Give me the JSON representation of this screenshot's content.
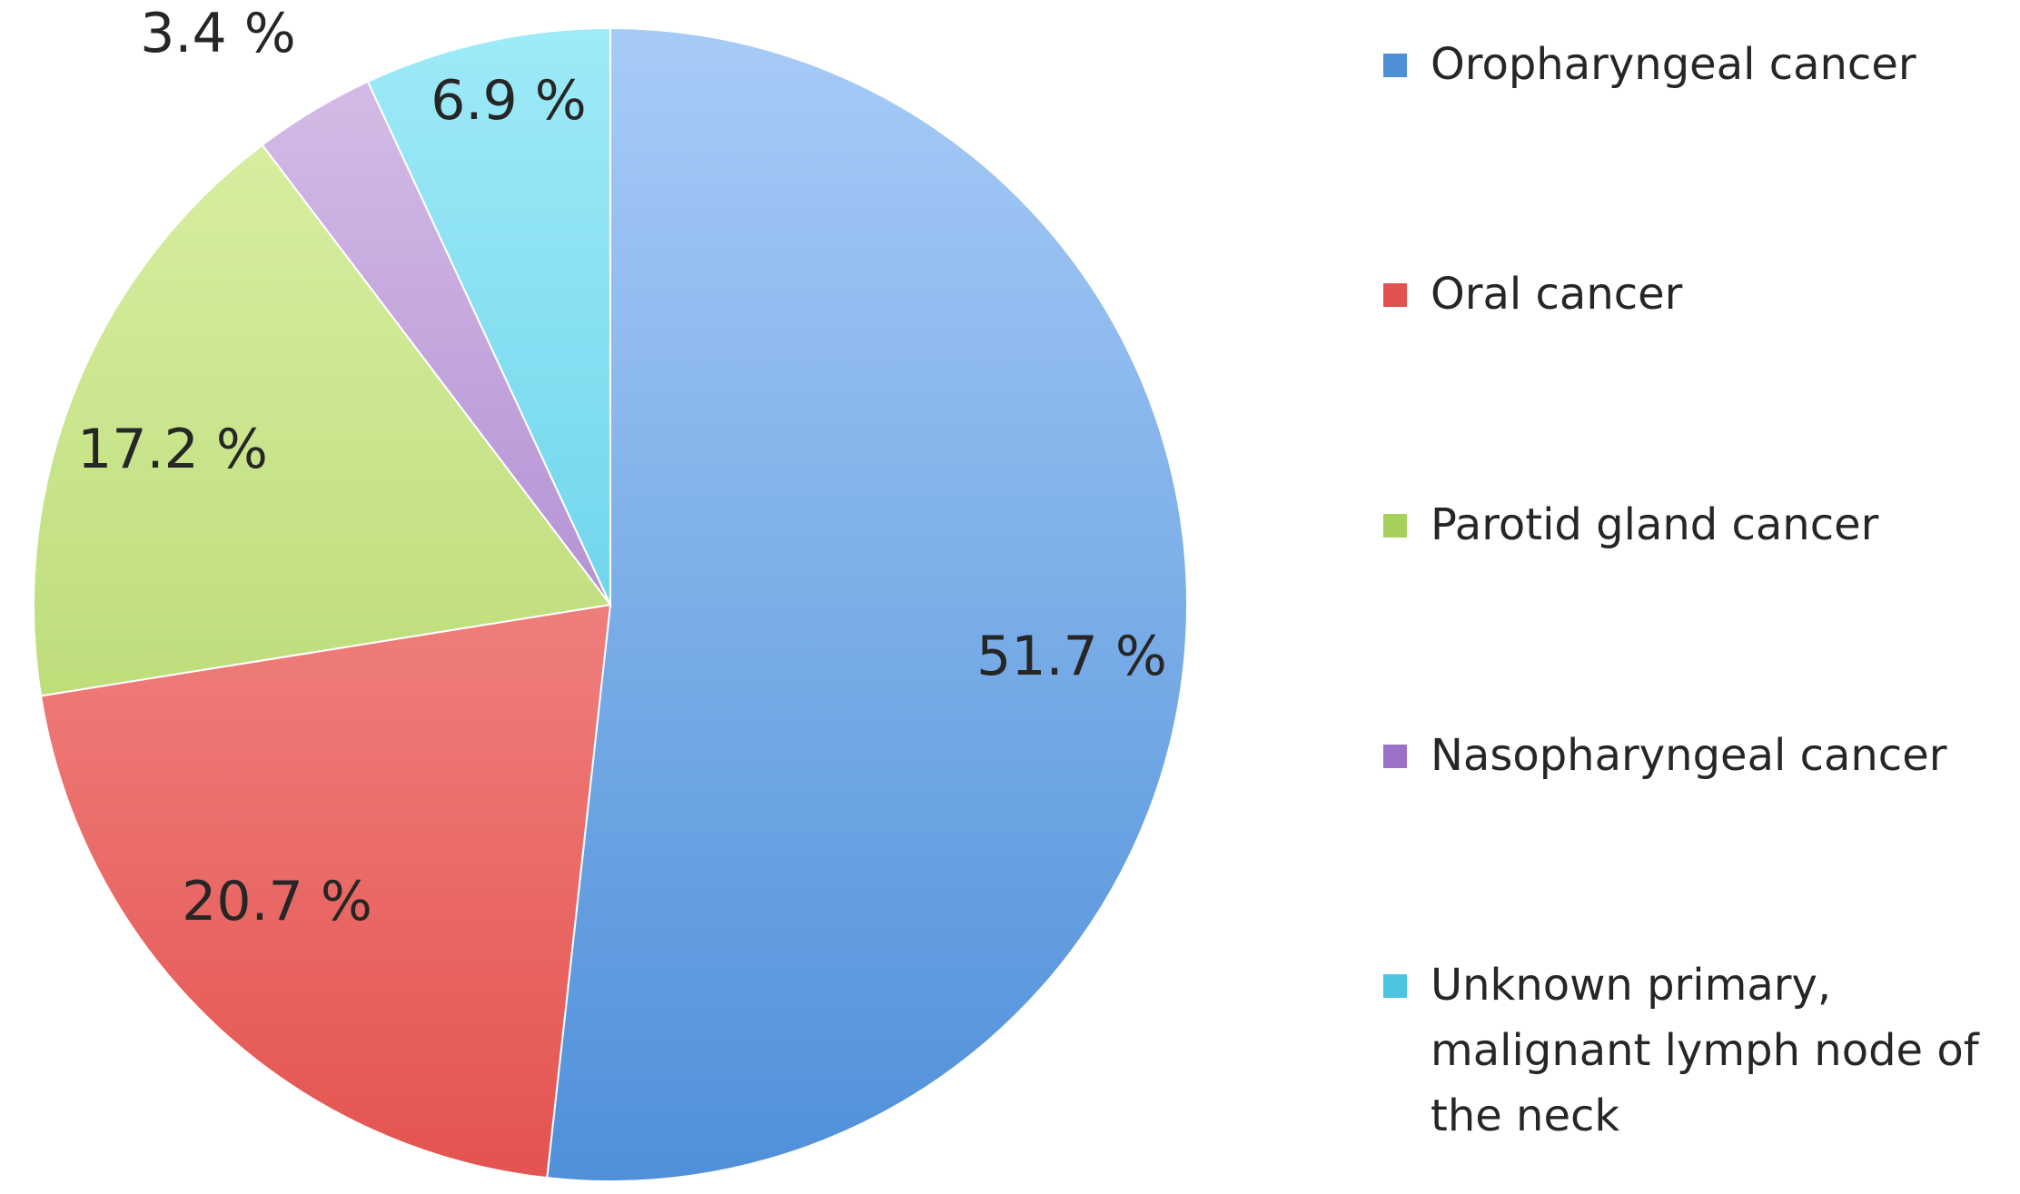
{
  "chart_data": {
    "type": "pie",
    "start_angle": "12 o'clock",
    "direction": "clockwise",
    "legend_position": "right",
    "slices": [
      {
        "label": "Oropharyngeal cancer",
        "legend_lines": [
          "Oropharyngeal cancer"
        ],
        "value": 51.7,
        "value_label": "51.7 %",
        "color_light": "#a7cbf7",
        "color_dark": "#4f90d9",
        "legend_color": "#4f8fd8"
      },
      {
        "label": "Oral cancer",
        "legend_lines": [
          "Oral cancer"
        ],
        "value": 20.7,
        "value_label": "20.7 %",
        "color_light": "#f9aaa8",
        "color_dark": "#e4534f",
        "legend_color": "#e1514f"
      },
      {
        "label": "Parotid gland cancer",
        "legend_lines": [
          "Parotid gland cancer"
        ],
        "value": 17.2,
        "value_label": "17.2 %",
        "color_light": "#dcf1a8",
        "color_dark": "#a8cf5a",
        "legend_color": "#a6cf5b"
      },
      {
        "label": "Nasopharyngeal cancer",
        "legend_lines": [
          "Nasopharyngeal cancer"
        ],
        "value": 3.4,
        "value_label": "3.4 %",
        "color_light": "#d6bfe8",
        "color_dark": "#9366c0",
        "legend_color": "#9a70c8"
      },
      {
        "label": "Unknown primary, malignant lymph node of the neck",
        "legend_lines": [
          "Unknown primary,",
          "malignant lymph node of",
          "the neck"
        ],
        "value": 6.9,
        "value_label": "6.9 %",
        "color_light": "#9eeaf8",
        "color_dark": "#45c1df",
        "legend_color": "#4cc4e0"
      }
    ]
  }
}
